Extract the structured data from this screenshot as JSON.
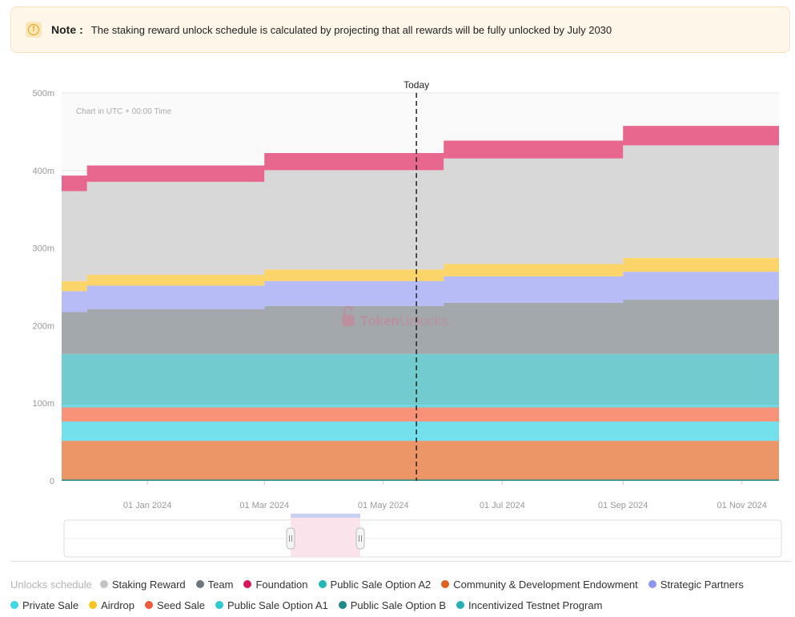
{
  "note": {
    "title": "Note",
    "colon": ":",
    "text": "The staking reward unlock schedule is calculated by projecting that all rewards will be fully unlocked by July 2030"
  },
  "chart_data": {
    "type": "area",
    "stacked": true,
    "step": true,
    "annotation_text": "Chart in UTC + 00:00 Time",
    "today_label": "Today",
    "watermark": {
      "brand_bold": "Token",
      "brand_light": "Unlocks."
    },
    "y_ticks": [
      "0",
      "100m",
      "200m",
      "300m",
      "400m",
      "500m"
    ],
    "ylim": [
      0,
      500
    ],
    "x_ticks": [
      "01 Jan 2024",
      "01 Mar 2024",
      "01 May 2024",
      "01 Jul 2024",
      "01 Sep 2024",
      "01 Nov 2024"
    ],
    "x_tick_dates": [
      "2024-01-01",
      "2024-03-01",
      "2024-05-01",
      "2024-07-01",
      "2024-09-01",
      "2024-11-01"
    ],
    "xlim": [
      "2023-11-18",
      "2024-11-20"
    ],
    "today_date": "2024-05-18",
    "grid": true,
    "legend_title": "Unlocks schedule",
    "series": [
      {
        "name": "Public Sale Option B",
        "color": "#1e8b86",
        "x": [
          "2023-11-18",
          "2023-12-01",
          "2024-11-20"
        ],
        "values": [
          1.5,
          1.5,
          1.5
        ]
      },
      {
        "name": "Community & Development Endowment",
        "color": "#ec9566",
        "x": [
          "2023-11-18",
          "2024-11-20"
        ],
        "values": [
          50,
          50
        ]
      },
      {
        "name": "Private Sale",
        "color": "#74e0ec",
        "x": [
          "2023-11-18",
          "2024-11-20"
        ],
        "values": [
          25,
          25
        ]
      },
      {
        "name": "Seed Sale",
        "color": "#f8937a",
        "x": [
          "2023-11-18",
          "2024-11-20"
        ],
        "values": [
          18,
          18
        ]
      },
      {
        "name": "Public Sale Option A1",
        "color": "#74d6e0",
        "x": [
          "2023-11-18",
          "2024-11-20"
        ],
        "values": [
          4,
          4
        ]
      },
      {
        "name": "Incentivized Testnet Program",
        "color": "#5ec6c6",
        "x": [
          "2023-11-18",
          "2024-11-20"
        ],
        "values": [
          2,
          2
        ]
      },
      {
        "name": "Public Sale Option A2",
        "color": "#72cbcf",
        "x": [
          "2023-11-18",
          "2024-11-20"
        ],
        "values": [
          63,
          63
        ]
      },
      {
        "name": "Team",
        "color": "#a2a8ac",
        "x": [
          "2023-11-18",
          "2023-12-01",
          "2024-03-01",
          "2024-06-01",
          "2024-09-01",
          "2024-11-20"
        ],
        "values": [
          54,
          58,
          62,
          66,
          70,
          72
        ]
      },
      {
        "name": "Strategic Partners",
        "color": "#b7bcf7",
        "x": [
          "2023-11-18",
          "2023-12-01",
          "2024-03-01",
          "2024-06-01",
          "2024-09-01",
          "2024-11-20"
        ],
        "values": [
          27,
          30,
          32,
          34,
          36,
          36
        ]
      },
      {
        "name": "Airdrop",
        "color": "#fcd56a",
        "x": [
          "2023-11-18",
          "2023-12-01",
          "2024-03-01",
          "2024-06-01",
          "2024-09-01",
          "2024-11-20"
        ],
        "values": [
          13,
          14,
          15,
          16,
          18,
          18
        ]
      },
      {
        "name": "Staking Reward",
        "color": "#d8d8d8",
        "x": [
          "2023-11-18",
          "2023-12-01",
          "2024-03-01",
          "2024-06-01",
          "2024-09-01",
          "2024-11-20"
        ],
        "values": [
          116,
          120,
          128,
          136,
          145,
          154
        ]
      },
      {
        "name": "Foundation",
        "color": "#e7678f",
        "x": [
          "2023-11-18",
          "2023-12-01",
          "2024-03-01",
          "2024-06-01",
          "2024-09-01",
          "2024-11-20"
        ],
        "values": [
          20,
          21,
          22,
          23,
          25,
          26
        ]
      }
    ]
  },
  "legend": {
    "row1": [
      "Staking Reward",
      "Team",
      "Foundation",
      "Public Sale Option A2",
      "Community & Development Endowment",
      "Strategic Partners"
    ],
    "row2": [
      "Private Sale",
      "Airdrop",
      "Seed Sale",
      "Public Sale Option A1",
      "Public Sale Option B",
      "Incentivized Testnet Program"
    ],
    "colors": {
      "Staking Reward": "#c4c4c4",
      "Team": "#6e777d",
      "Foundation": "#d6185e",
      "Public Sale Option A2": "#26b5b5",
      "Community & Development Endowment": "#e1621c",
      "Strategic Partners": "#8d97f4",
      "Private Sale": "#3fd7e6",
      "Airdrop": "#f8c520",
      "Seed Sale": "#f2593f",
      "Public Sale Option A1": "#2fc9d4",
      "Public Sale Option B": "#1e8b86",
      "Incentivized Testnet Program": "#26b2b5"
    }
  },
  "colors": {
    "accent": "#e7678f",
    "navigator_window": "#f9e0e8"
  }
}
